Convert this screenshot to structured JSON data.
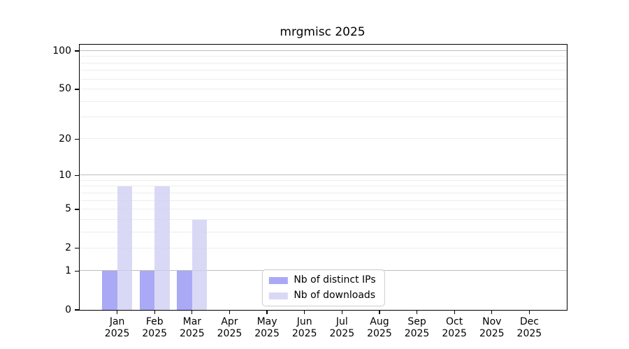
{
  "chart_data": {
    "type": "bar",
    "title": "mrgmisc 2025",
    "categories": [
      "Jan",
      "Feb",
      "Mar",
      "Apr",
      "May",
      "Jun",
      "Jul",
      "Aug",
      "Sep",
      "Oct",
      "Nov",
      "Dec"
    ],
    "category_year": "2025",
    "series": [
      {
        "name": "Nb of distinct IPs",
        "color": "#9494f3",
        "alpha": 0.8,
        "values": [
          1,
          1,
          1,
          0,
          0,
          0,
          0,
          0,
          0,
          0,
          0,
          0
        ]
      },
      {
        "name": "Nb of downloads",
        "color": "#d0d0f4",
        "alpha": 0.8,
        "values": [
          8,
          8,
          4,
          0,
          0,
          0,
          0,
          0,
          0,
          0,
          0,
          0
        ]
      }
    ],
    "y_axis": {
      "scale": "log10(value+1)",
      "tick_values": [
        0,
        1,
        2,
        5,
        10,
        20,
        50,
        100
      ],
      "max_value": 112,
      "major_gridlines": [
        1,
        10,
        100
      ],
      "minor_gridlines": [
        2,
        3,
        4,
        5,
        6,
        7,
        8,
        9,
        20,
        30,
        40,
        50,
        60,
        70,
        80,
        90
      ]
    },
    "legend": {
      "position": "lower center"
    },
    "colors": {
      "major_grid": "#bdbdbd",
      "minor_grid": "#ededed",
      "axis": "#000000",
      "background": "#ffffff"
    }
  }
}
